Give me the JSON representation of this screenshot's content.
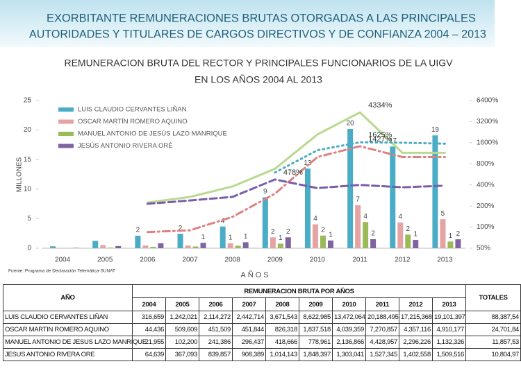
{
  "header": {
    "title": [
      "EXORBITANTE REMUNERACIONES BRUTAS OTORGADAS A LAS PRINCIPALES",
      "AUTORIDADES Y TITULARES DE CARGOS DIRECTIVOS Y DE CONFIANZA 2004 – 2013"
    ]
  },
  "chart_data": {
    "type": "bar",
    "title": [
      "REMUNERACION BRUTA DEL RECTOR Y PRINCIPALES FUNCIONARIOS DE LA UIGV",
      "EN LOS AÑOS 2004 AL 2013"
    ],
    "y_label": "MILLONES",
    "x_label": "AÑOS",
    "source": "Fuente: Programa de Declaración Telemática-SUNAT",
    "categories": [
      "2004",
      "2005",
      "2006",
      "2007",
      "2008",
      "2009",
      "2010",
      "2011",
      "2012",
      "2013"
    ],
    "series": [
      {
        "name": "LUIS CLAUDIO CERVANTES LIÑAN",
        "color": "#4bacc6",
        "values": [
          0.316659,
          1.242021,
          2.114272,
          2.442714,
          3.671543,
          8.622985,
          13.472064,
          20.188495,
          17.215368,
          19.101397
        ],
        "value_labels": [
          null,
          null,
          "2",
          "2",
          "4",
          "9",
          "13",
          "20",
          "17",
          "19"
        ]
      },
      {
        "name": "OSCAR MARTÍN ROMERO AQUINO",
        "color": "#e6a3a3",
        "values": [
          0.044436,
          0.509609,
          0.451509,
          0.451844,
          0.826318,
          1.837518,
          4.039359,
          7.270857,
          4.357116,
          4.910177
        ],
        "value_labels": [
          null,
          null,
          null,
          null,
          "1",
          "2",
          "4",
          "7",
          "4",
          "5"
        ]
      },
      {
        "name": "MANUEL ANTONIO DE JESÚS LAZO MANRIQUE",
        "color": "#9bbb59",
        "values": [
          0.021955,
          0.1022,
          0.241386,
          0.296437,
          0.418666,
          0.778961,
          2.136866,
          4.428957,
          2.296226,
          1.132326
        ],
        "value_labels": [
          null,
          null,
          null,
          null,
          null,
          "1",
          "2",
          "4",
          "2",
          "1"
        ]
      },
      {
        "name": "JESÚS ANTONIO RIVERA ORÉ",
        "color": "#8064a2",
        "values": [
          0.064639,
          0.367093,
          0.839857,
          0.908389,
          1.014143,
          1.848397,
          1.303041,
          1.527345,
          1.402558,
          1.509516
        ],
        "value_labels": [
          null,
          null,
          null,
          "1",
          "1",
          "2",
          "1",
          "2",
          "1",
          "2"
        ]
      }
    ],
    "lines": [
      {
        "color": "#b9d98f",
        "style": "solid",
        "axis": "y2",
        "values": [
          null,
          null,
          224,
          270,
          380,
          680,
          2100,
          4334,
          1150,
          1150
        ],
        "value_labels": [
          null,
          null,
          null,
          null,
          null,
          null,
          null,
          "4334%",
          null,
          null
        ]
      },
      {
        "color": "#e07f7f",
        "style": "dashdot",
        "axis": "y2",
        "values": [
          null,
          null,
          85,
          90,
          140,
          300,
          1000,
          1427,
          1000,
          1000
        ],
        "value_labels": [
          null,
          null,
          null,
          null,
          null,
          null,
          null,
          "1427%",
          null,
          null
        ]
      },
      {
        "color": "#4bacc6",
        "style": "dotted",
        "axis": "y2",
        "values": [
          null,
          null,
          null,
          null,
          null,
          600,
          1250,
          1625,
          1600,
          1550
        ],
        "value_labels": [
          null,
          null,
          null,
          null,
          null,
          null,
          null,
          "1625%",
          null,
          null
        ]
      },
      {
        "color": "#7a5ca8",
        "style": "dashed",
        "axis": "y2",
        "values": [
          null,
          null,
          215,
          240,
          270,
          478,
          360,
          400,
          370,
          390
        ],
        "value_labels": [
          null,
          null,
          null,
          null,
          null,
          "478%",
          null,
          null,
          null,
          null
        ]
      }
    ],
    "ylim": [
      0,
      25
    ],
    "yticks": [
      0,
      5,
      10,
      15,
      20,
      25
    ],
    "y2lim": [
      50,
      6400
    ],
    "y2log": true,
    "y2ticks": [
      {
        "value": 50,
        "label": "50%"
      },
      {
        "value": 100,
        "label": "100%"
      },
      {
        "value": 200,
        "label": "200%"
      },
      {
        "value": 400,
        "label": "400%"
      },
      {
        "value": 800,
        "label": "800%"
      },
      {
        "value": 1600,
        "label": "1600%"
      },
      {
        "value": 3200,
        "label": "3200%"
      },
      {
        "value": 6400,
        "label": "6400%"
      }
    ],
    "legend": "top-left",
    "grid": false
  },
  "table": {
    "corner": "AÑO",
    "group": "REMUNERACION BRUTA POR AÑOS",
    "total_header": "TOTALES",
    "years": [
      "2004",
      "2005",
      "2006",
      "2007",
      "2008",
      "2009",
      "2010",
      "2011",
      "2012",
      "2013"
    ],
    "rows": [
      [
        "LUIS CLAUDIO CERVANTES LIÑAN",
        "316,659",
        "1,242,021",
        "2,114,272",
        "2,442,714",
        "3,671,543",
        "8,622,985",
        "13,472,064",
        "20,188,495",
        "17,215,368",
        "19,101,397",
        "88,387,54"
      ],
      [
        "OSCAR MARTIN ROMERO AQUINO",
        "44,436",
        "509,609",
        "451,509",
        "451,844",
        "826,318",
        "1,837,518",
        "4,039,359",
        "7,270,857",
        "4,357,116",
        "4,910,177",
        "24,701,84"
      ],
      [
        "MANUEL ANTONIO DE JESUS LAZO MANRIQUE",
        "21,955",
        "102,200",
        "241,386",
        "296,437",
        "418,666",
        "778,961",
        "2,136,866",
        "4,428,957",
        "2,296,226",
        "1,132,326",
        "11,857,53"
      ],
      [
        "JESUS ANTONIO RIVERA ORE",
        "64,639",
        "367,093",
        "839,857",
        "908,389",
        "1,014,143",
        "1,848,397",
        "1,303,041",
        "1,527,345",
        "1,402,558",
        "1,509,516",
        "10,804,97"
      ]
    ]
  }
}
